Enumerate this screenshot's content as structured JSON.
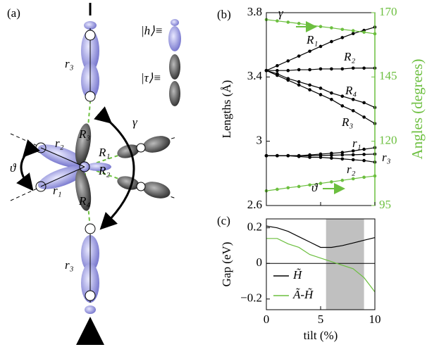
{
  "diagram": {
    "label": "(a)",
    "h_label": "|h⟩≡",
    "tau_label": "|τ⟩≡",
    "labels": [
      "r₃",
      "r₂",
      "r₁",
      "R₃",
      "R₁",
      "R₂",
      "R₄",
      "γ",
      "ϑ",
      "r₃"
    ]
  },
  "chart_data": [
    {
      "type": "line",
      "title": "(b)",
      "ylabel": "Lengths (Å)",
      "y2label": "Angles (degrees)",
      "x": [
        0,
        1,
        2,
        3,
        4,
        5,
        6,
        7,
        8,
        9,
        10
      ],
      "xlim": [
        0,
        10
      ],
      "xticks": [
        0,
        5,
        10
      ],
      "ylim": [
        2.6,
        3.8
      ],
      "yticks": [
        2.6,
        3,
        3.4,
        3.8
      ],
      "y2lim": [
        95,
        170
      ],
      "y2ticks": [
        95,
        120,
        145,
        170
      ],
      "series": [
        {
          "name": "R₁",
          "color": "#000000",
          "values": [
            3.44,
            3.47,
            3.5,
            3.53,
            3.56,
            3.59,
            3.62,
            3.645,
            3.67,
            3.69,
            3.71
          ]
        },
        {
          "name": "R₂",
          "color": "#000000",
          "values": [
            3.44,
            3.44,
            3.44,
            3.445,
            3.445,
            3.45,
            3.45,
            3.45,
            3.455,
            3.455,
            3.455
          ]
        },
        {
          "name": "R₄",
          "color": "#000000",
          "values": [
            3.44,
            3.42,
            3.39,
            3.37,
            3.35,
            3.33,
            3.3,
            3.28,
            3.26,
            3.24,
            3.21
          ]
        },
        {
          "name": "R₃",
          "color": "#000000",
          "values": [
            3.44,
            3.41,
            3.38,
            3.35,
            3.32,
            3.29,
            3.26,
            3.22,
            3.19,
            3.15,
            3.11
          ]
        },
        {
          "name": "r₁",
          "color": "#000000",
          "values": [
            2.91,
            2.91,
            2.91,
            2.91,
            2.915,
            2.92,
            2.925,
            2.93,
            2.94,
            2.95,
            2.96
          ]
        },
        {
          "name": "r₃",
          "color": "#000000",
          "values": [
            2.91,
            2.91,
            2.91,
            2.91,
            2.91,
            2.912,
            2.913,
            2.915,
            2.916,
            2.918,
            2.92
          ]
        },
        {
          "name": "r₂",
          "color": "#000000",
          "values": [
            2.91,
            2.91,
            2.91,
            2.905,
            2.9,
            2.9,
            2.895,
            2.89,
            2.885,
            2.88,
            2.87
          ]
        },
        {
          "name": "γ",
          "color": "#6cbf3f",
          "axis": "y2",
          "values": [
            167.3,
            166.8,
            166.3,
            165.8,
            165.2,
            164.6,
            164.1,
            163.5,
            163,
            162.4,
            161.8
          ]
        },
        {
          "name": "ϑ",
          "color": "#6cbf3f",
          "axis": "y2",
          "values": [
            100.7,
            101.3,
            101.9,
            102.4,
            103,
            103.6,
            104.2,
            104.8,
            105.4,
            106,
            106.5
          ]
        }
      ]
    },
    {
      "type": "line",
      "title": "(c)",
      "ylabel": "Gap (eV)",
      "xlabel": "tilt (%)",
      "x": [
        0,
        1,
        2,
        3,
        4,
        5,
        6,
        7,
        8,
        9,
        10
      ],
      "xlim": [
        0,
        10
      ],
      "xticks": [
        0,
        5,
        10
      ],
      "ylim": [
        -0.26,
        0.25
      ],
      "yticks": [
        0.2,
        0,
        {
          "value": -0.2,
          "label": "−0.2"
        }
      ],
      "shaded_x": [
        5.5,
        9
      ],
      "series": [
        {
          "name": "H̃",
          "color": "#000000",
          "values": [
            0.21,
            0.2,
            0.18,
            0.15,
            0.12,
            0.09,
            0.09,
            0.1,
            0.115,
            0.13,
            0.145
          ]
        },
        {
          "name": "Ã-H̃",
          "color": "#6cbf3f",
          "values": [
            0.14,
            0.14,
            0.11,
            0.09,
            0.05,
            0.03,
            0.01,
            -0.01,
            -0.03,
            -0.08,
            -0.16
          ]
        }
      ]
    }
  ]
}
